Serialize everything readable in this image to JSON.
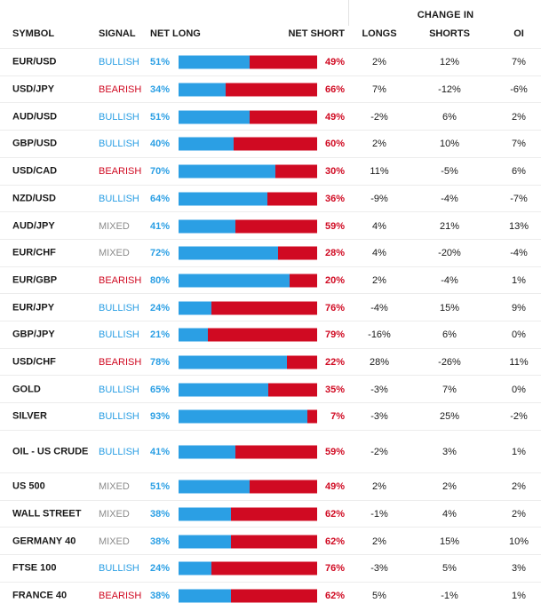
{
  "group_header": "CHANGE IN",
  "columns": {
    "symbol": "SYMBOL",
    "signal": "SIGNAL",
    "net_long": "NET LONG",
    "net_short": "NET SHORT",
    "longs": "LONGS",
    "shorts": "SHORTS",
    "oi": "OI"
  },
  "colors": {
    "long": "#2b9fe4",
    "short": "#d00a22",
    "bullish": "#2b9fe4",
    "bearish": "#d00a22",
    "mixed": "#8c8c8c"
  },
  "rows": [
    {
      "symbol": "EUR/USD",
      "signal": "BULLISH",
      "net_long": "51%",
      "net_short": "49%",
      "long_pct": 51,
      "longs": "2%",
      "shorts": "12%",
      "oi": "7%"
    },
    {
      "symbol": "USD/JPY",
      "signal": "BEARISH",
      "net_long": "34%",
      "net_short": "66%",
      "long_pct": 34,
      "longs": "7%",
      "shorts": "-12%",
      "oi": "-6%"
    },
    {
      "symbol": "AUD/USD",
      "signal": "BULLISH",
      "net_long": "51%",
      "net_short": "49%",
      "long_pct": 51,
      "longs": "-2%",
      "shorts": "6%",
      "oi": "2%"
    },
    {
      "symbol": "GBP/USD",
      "signal": "BULLISH",
      "net_long": "40%",
      "net_short": "60%",
      "long_pct": 40,
      "longs": "2%",
      "shorts": "10%",
      "oi": "7%"
    },
    {
      "symbol": "USD/CAD",
      "signal": "BEARISH",
      "net_long": "70%",
      "net_short": "30%",
      "long_pct": 70,
      "longs": "11%",
      "shorts": "-5%",
      "oi": "6%"
    },
    {
      "symbol": "NZD/USD",
      "signal": "BULLISH",
      "net_long": "64%",
      "net_short": "36%",
      "long_pct": 64,
      "longs": "-9%",
      "shorts": "-4%",
      "oi": "-7%"
    },
    {
      "symbol": "AUD/JPY",
      "signal": "MIXED",
      "net_long": "41%",
      "net_short": "59%",
      "long_pct": 41,
      "longs": "4%",
      "shorts": "21%",
      "oi": "13%"
    },
    {
      "symbol": "EUR/CHF",
      "signal": "MIXED",
      "net_long": "72%",
      "net_short": "28%",
      "long_pct": 72,
      "longs": "4%",
      "shorts": "-20%",
      "oi": "-4%"
    },
    {
      "symbol": "EUR/GBP",
      "signal": "BEARISH",
      "net_long": "80%",
      "net_short": "20%",
      "long_pct": 80,
      "longs": "2%",
      "shorts": "-4%",
      "oi": "1%"
    },
    {
      "symbol": "EUR/JPY",
      "signal": "BULLISH",
      "net_long": "24%",
      "net_short": "76%",
      "long_pct": 24,
      "longs": "-4%",
      "shorts": "15%",
      "oi": "9%"
    },
    {
      "symbol": "GBP/JPY",
      "signal": "BULLISH",
      "net_long": "21%",
      "net_short": "79%",
      "long_pct": 21,
      "longs": "-16%",
      "shorts": "6%",
      "oi": "0%"
    },
    {
      "symbol": "USD/CHF",
      "signal": "BEARISH",
      "net_long": "78%",
      "net_short": "22%",
      "long_pct": 78,
      "longs": "28%",
      "shorts": "-26%",
      "oi": "11%"
    },
    {
      "symbol": "GOLD",
      "signal": "BULLISH",
      "net_long": "65%",
      "net_short": "35%",
      "long_pct": 65,
      "longs": "-3%",
      "shorts": "7%",
      "oi": "0%"
    },
    {
      "symbol": "SILVER",
      "signal": "BULLISH",
      "net_long": "93%",
      "net_short": "7%",
      "long_pct": 93,
      "longs": "-3%",
      "shorts": "25%",
      "oi": "-2%"
    },
    {
      "symbol": "OIL - US CRUDE",
      "signal": "BULLISH",
      "net_long": "41%",
      "net_short": "59%",
      "long_pct": 41,
      "longs": "-2%",
      "shorts": "3%",
      "oi": "1%"
    },
    {
      "symbol": "US 500",
      "signal": "MIXED",
      "net_long": "51%",
      "net_short": "49%",
      "long_pct": 51,
      "longs": "2%",
      "shorts": "2%",
      "oi": "2%"
    },
    {
      "symbol": "WALL STREET",
      "signal": "MIXED",
      "net_long": "38%",
      "net_short": "62%",
      "long_pct": 38,
      "longs": "-1%",
      "shorts": "4%",
      "oi": "2%"
    },
    {
      "symbol": "GERMANY 40",
      "signal": "MIXED",
      "net_long": "38%",
      "net_short": "62%",
      "long_pct": 38,
      "longs": "2%",
      "shorts": "15%",
      "oi": "10%"
    },
    {
      "symbol": "FTSE 100",
      "signal": "BULLISH",
      "net_long": "24%",
      "net_short": "76%",
      "long_pct": 24,
      "longs": "-3%",
      "shorts": "5%",
      "oi": "3%"
    },
    {
      "symbol": "FRANCE 40",
      "signal": "BEARISH",
      "net_long": "38%",
      "net_short": "62%",
      "long_pct": 38,
      "longs": "5%",
      "shorts": "-1%",
      "oi": "1%"
    }
  ]
}
